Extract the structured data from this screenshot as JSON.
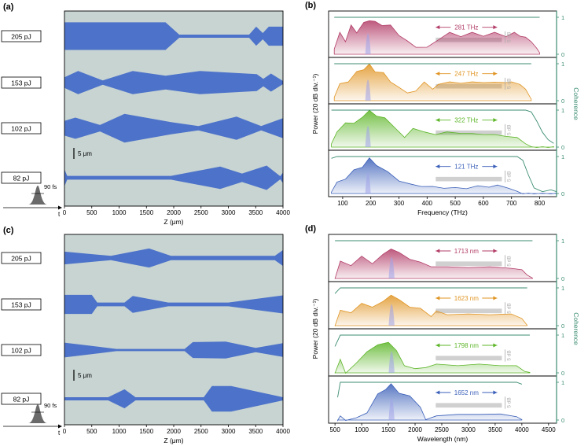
{
  "figure": {
    "panel_labels": [
      "(a)",
      "(b)",
      "(c)",
      "(d)"
    ],
    "pulse_duration_label": "90 fs",
    "time_axis_label": "t",
    "scale_bar_label": "5  μm"
  },
  "colors": {
    "waveguide_bg": "#c7d4d2",
    "waveguide_fill": "#4d72c9",
    "coherence_axis": "#3b8c72",
    "series": [
      "#b23c67",
      "#e09422",
      "#5cb527",
      "#3a5fb8"
    ],
    "pump_band": "#9fa2e8",
    "gray_box": "#b0b0b0"
  },
  "chart_data": [
    {
      "id": "a",
      "type": "area",
      "title": "(a)",
      "xlabel": "Z (μm)",
      "ylabel": "",
      "xlim": [
        0,
        4000
      ],
      "xticks": [
        0,
        500,
        1000,
        1500,
        2000,
        2500,
        3000,
        3500,
        4000
      ],
      "energies": [
        "205 pJ",
        "153 pJ",
        "102 pJ",
        "82 pJ"
      ],
      "waveguide_widths_um": [
        {
          "z": [
            0,
            1850,
            2100,
            3380,
            3510,
            3630,
            3740,
            4000
          ],
          "width": [
            5.2,
            5.2,
            0.6,
            0.6,
            3.6,
            1.2,
            3.6,
            3.6
          ]
        },
        {
          "z": [
            0,
            250,
            700,
            1250,
            1850,
            2480,
            3520,
            3640,
            3780,
            4000
          ],
          "width": [
            2.0,
            4.4,
            0.8,
            4.4,
            2.6,
            4.4,
            3.2,
            1.4,
            3.4,
            0.6
          ]
        },
        {
          "z": [
            0,
            200,
            650,
            1100,
            1950,
            2450,
            3150,
            3600,
            4000
          ],
          "width": [
            2.8,
            4.0,
            1.2,
            5.4,
            2.3,
            0.8,
            4.4,
            0.8,
            3.8
          ]
        },
        {
          "z": [
            0,
            50,
            1950,
            2850,
            3250,
            3700,
            3950,
            4000
          ],
          "width": [
            3.2,
            0.7,
            0.7,
            4.2,
            1.6,
            4.6,
            0.6,
            2.0
          ]
        }
      ]
    },
    {
      "id": "b",
      "type": "area",
      "title": "(b)",
      "xlabel": "Frequency (THz)",
      "ylabel": "Power  (20 dB div.⁻¹)",
      "y2label": "Coherence",
      "xlim": [
        50,
        860
      ],
      "xticks": [
        100,
        200,
        300,
        400,
        500,
        600,
        700,
        800
      ],
      "coherence_ticks": [
        0,
        1
      ],
      "bandwidth_annotations": [
        "281 THz",
        "247 THz",
        "322 THz",
        "121 THz"
      ],
      "scale_marker": "5 dB",
      "series": [
        {
          "name": "205 pJ",
          "x": [
            70,
            90,
            110,
            130,
            150,
            175,
            195,
            215,
            240,
            270,
            300,
            330,
            360,
            400,
            440,
            480,
            520,
            560,
            600,
            640,
            680,
            710,
            730,
            750,
            770,
            790,
            800
          ],
          "power": [
            0.15,
            0.55,
            0.35,
            0.75,
            0.62,
            0.82,
            0.95,
            0.85,
            0.82,
            0.75,
            0.55,
            0.35,
            0.2,
            0.18,
            0.4,
            0.55,
            0.52,
            0.55,
            0.53,
            0.55,
            0.52,
            0.55,
            0.5,
            0.45,
            0.35,
            0.15,
            0.05
          ],
          "coherence": [
            1.0,
            1.0,
            1.0,
            1.0,
            1.0,
            1.0,
            1.0,
            1.0,
            1.0,
            1.0,
            1.0,
            1.0,
            1.0,
            1.0,
            1.0,
            1.0,
            1.0,
            1.0,
            1.0,
            1.0,
            1.0,
            1.0,
            1.0,
            1.0,
            1.0,
            1.0,
            1.0
          ]
        },
        {
          "name": "153 pJ",
          "x": [
            70,
            90,
            120,
            150,
            175,
            195,
            215,
            245,
            270,
            300,
            330,
            360,
            390,
            420,
            440,
            480,
            520,
            560,
            600,
            640,
            680,
            700,
            730,
            750,
            770
          ],
          "power": [
            0.1,
            0.45,
            0.55,
            0.75,
            0.88,
            0.95,
            0.82,
            0.72,
            0.55,
            0.35,
            0.22,
            0.25,
            0.55,
            0.3,
            0.45,
            0.5,
            0.48,
            0.5,
            0.5,
            0.49,
            0.5,
            0.5,
            0.45,
            0.3,
            0.05
          ],
          "coherence": [
            1.0,
            1.0,
            1.0,
            1.0,
            1.0,
            1.0,
            1.0,
            1.0,
            1.0,
            1.0,
            1.0,
            1.0,
            1.0,
            1.0,
            1.0,
            1.0,
            1.0,
            1.0,
            1.0,
            1.0,
            1.0,
            1.0,
            1.0,
            1.0,
            1.0
          ]
        },
        {
          "name": "102 pJ",
          "x": [
            60,
            80,
            110,
            140,
            170,
            195,
            220,
            250,
            290,
            320,
            350,
            390,
            430,
            470,
            520,
            560,
            600,
            640,
            680,
            720,
            750,
            770,
            790,
            810,
            830,
            850
          ],
          "power": [
            0.1,
            0.4,
            0.7,
            0.6,
            0.85,
            0.95,
            0.88,
            0.75,
            0.5,
            0.25,
            0.55,
            0.4,
            0.35,
            0.4,
            0.38,
            0.36,
            0.35,
            0.33,
            0.3,
            0.25,
            0.1,
            0.0,
            0.0,
            0.0,
            0.0,
            0.0
          ],
          "coherence": [
            1.0,
            1.0,
            1.0,
            1.0,
            1.0,
            1.0,
            1.0,
            1.0,
            1.0,
            1.0,
            1.0,
            1.0,
            1.0,
            1.0,
            1.0,
            1.0,
            1.0,
            1.0,
            1.0,
            1.0,
            1.0,
            0.95,
            0.7,
            0.4,
            0.2,
            0.1
          ]
        },
        {
          "name": "82 pJ",
          "x": [
            60,
            80,
            110,
            140,
            170,
            195,
            220,
            260,
            300,
            340,
            380,
            420,
            460,
            500,
            540,
            580,
            620,
            650,
            690,
            720,
            740,
            760,
            780,
            810,
            840,
            860
          ],
          "power": [
            0.05,
            0.3,
            0.4,
            0.6,
            0.75,
            0.92,
            0.8,
            0.55,
            0.35,
            0.25,
            0.2,
            0.18,
            0.15,
            0.15,
            0.14,
            0.2,
            0.18,
            0.22,
            0.15,
            0.05,
            0.0,
            0.0,
            0.0,
            0.0,
            0.0,
            0.0
          ],
          "coherence": [
            0.95,
            1.0,
            1.0,
            1.0,
            1.0,
            1.0,
            1.0,
            1.0,
            1.0,
            1.0,
            1.0,
            1.0,
            1.0,
            1.0,
            1.0,
            1.0,
            1.0,
            1.0,
            1.0,
            1.0,
            0.9,
            0.5,
            0.15,
            0.05,
            0.1,
            0.05
          ]
        }
      ]
    },
    {
      "id": "c",
      "type": "area",
      "title": "(c)",
      "xlabel": "Z (μm)",
      "ylabel": "",
      "xlim": [
        0,
        4000
      ],
      "xticks": [
        0,
        500,
        1000,
        1500,
        2000,
        2500,
        3000,
        3500,
        4000
      ],
      "energies": [
        "205 pJ",
        "153 pJ",
        "102 pJ",
        "82 pJ"
      ],
      "waveguide_widths_um": [
        {
          "z": [
            0,
            850,
            1550,
            1950,
            3850,
            4000
          ],
          "width": [
            2.4,
            0.8,
            3.6,
            0.8,
            0.8,
            3.0
          ]
        },
        {
          "z": [
            0,
            500,
            600,
            1050,
            1100,
            1250,
            1900,
            3000,
            4000
          ],
          "width": [
            3.6,
            3.6,
            0.7,
            0.7,
            0.7,
            3.2,
            0.7,
            0.7,
            3.4
          ]
        },
        {
          "z": [
            0,
            950,
            2200,
            2350,
            2950,
            3500,
            4000
          ],
          "width": [
            2.8,
            0.4,
            0.4,
            3.0,
            3.2,
            0.8,
            2.6
          ]
        },
        {
          "z": [
            0,
            800,
            1100,
            1300,
            2550,
            2700,
            3050,
            4000
          ],
          "width": [
            0.6,
            0.6,
            3.6,
            0.6,
            0.6,
            4.8,
            4.8,
            0.6
          ]
        }
      ]
    },
    {
      "id": "d",
      "type": "area",
      "title": "(d)",
      "xlabel": "Wavelength (nm)",
      "ylabel": "Power  (20 dB div.⁻¹)",
      "y2label": "Coherence",
      "xlim": [
        380,
        4650
      ],
      "xticks": [
        500,
        1000,
        1500,
        2000,
        2500,
        3000,
        3500,
        4000,
        4500
      ],
      "coherence_ticks": [
        0,
        1
      ],
      "bandwidth_annotations": [
        "1713 nm",
        "1623 nm",
        "1798 nm",
        "1652 nm"
      ],
      "scale_marker": "5 dB",
      "series": [
        {
          "name": "205 pJ",
          "x": [
            500,
            600,
            800,
            1000,
            1200,
            1400,
            1550,
            1700,
            1900,
            2100,
            2300,
            2600,
            3000,
            3400,
            3800,
            4000,
            4100,
            4200
          ],
          "power": [
            0.0,
            0.45,
            0.35,
            0.55,
            0.4,
            0.6,
            0.82,
            0.65,
            0.55,
            0.42,
            0.32,
            0.3,
            0.3,
            0.3,
            0.28,
            0.22,
            0.1,
            0.0
          ],
          "coherence": [
            1.0,
            1.0,
            1.0,
            1.0,
            1.0,
            1.0,
            1.0,
            1.0,
            1.0,
            1.0,
            1.0,
            1.0,
            1.0,
            1.0,
            1.0,
            1.0,
            1.0,
            1.0
          ]
        },
        {
          "name": "153 pJ",
          "x": [
            500,
            600,
            800,
            1000,
            1200,
            1400,
            1550,
            1700,
            1900,
            2100,
            2300,
            2400,
            2600,
            3000,
            3400,
            3800,
            4000,
            4100
          ],
          "power": [
            0.0,
            0.4,
            0.35,
            0.55,
            0.5,
            0.6,
            0.85,
            0.65,
            0.5,
            0.45,
            0.25,
            0.38,
            0.3,
            0.3,
            0.3,
            0.3,
            0.2,
            0.0
          ],
          "coherence": [
            0.85,
            1.0,
            1.0,
            1.0,
            1.0,
            1.0,
            1.0,
            1.0,
            1.0,
            1.0,
            1.0,
            1.0,
            1.0,
            1.0,
            1.0,
            1.0,
            1.0,
            1.0
          ]
        },
        {
          "name": "102 pJ",
          "x": [
            500,
            600,
            700,
            900,
            1100,
            1300,
            1500,
            1650,
            1800,
            2000,
            2200,
            2400,
            2800,
            3200,
            3600,
            3900,
            4050,
            4150
          ],
          "power": [
            0.0,
            0.35,
            0.0,
            0.25,
            0.6,
            0.7,
            0.85,
            0.55,
            0.2,
            0.1,
            0.15,
            0.22,
            0.2,
            0.22,
            0.2,
            0.18,
            0.05,
            0.0
          ],
          "coherence": [
            0.7,
            1.0,
            1.0,
            1.0,
            1.0,
            1.0,
            1.0,
            1.0,
            1.0,
            1.0,
            1.0,
            1.0,
            1.0,
            1.0,
            1.0,
            1.0,
            1.0,
            1.0
          ]
        },
        {
          "name": "82 pJ",
          "x": [
            550,
            600,
            700,
            900,
            1100,
            1300,
            1450,
            1550,
            1700,
            1900,
            2100,
            2200,
            2400,
            2800,
            3200,
            3600,
            3900,
            4000
          ],
          "power": [
            0.0,
            0.1,
            0.0,
            0.05,
            0.2,
            0.65,
            0.85,
            0.92,
            0.75,
            0.6,
            0.35,
            0.0,
            0.12,
            0.14,
            0.16,
            0.15,
            0.1,
            0.0
          ],
          "coherence": [
            0.6,
            1.0,
            1.0,
            1.0,
            1.0,
            1.0,
            1.0,
            1.0,
            1.0,
            1.0,
            1.0,
            1.0,
            1.0,
            1.0,
            1.0,
            1.0,
            1.0,
            0.95
          ]
        }
      ]
    }
  ]
}
